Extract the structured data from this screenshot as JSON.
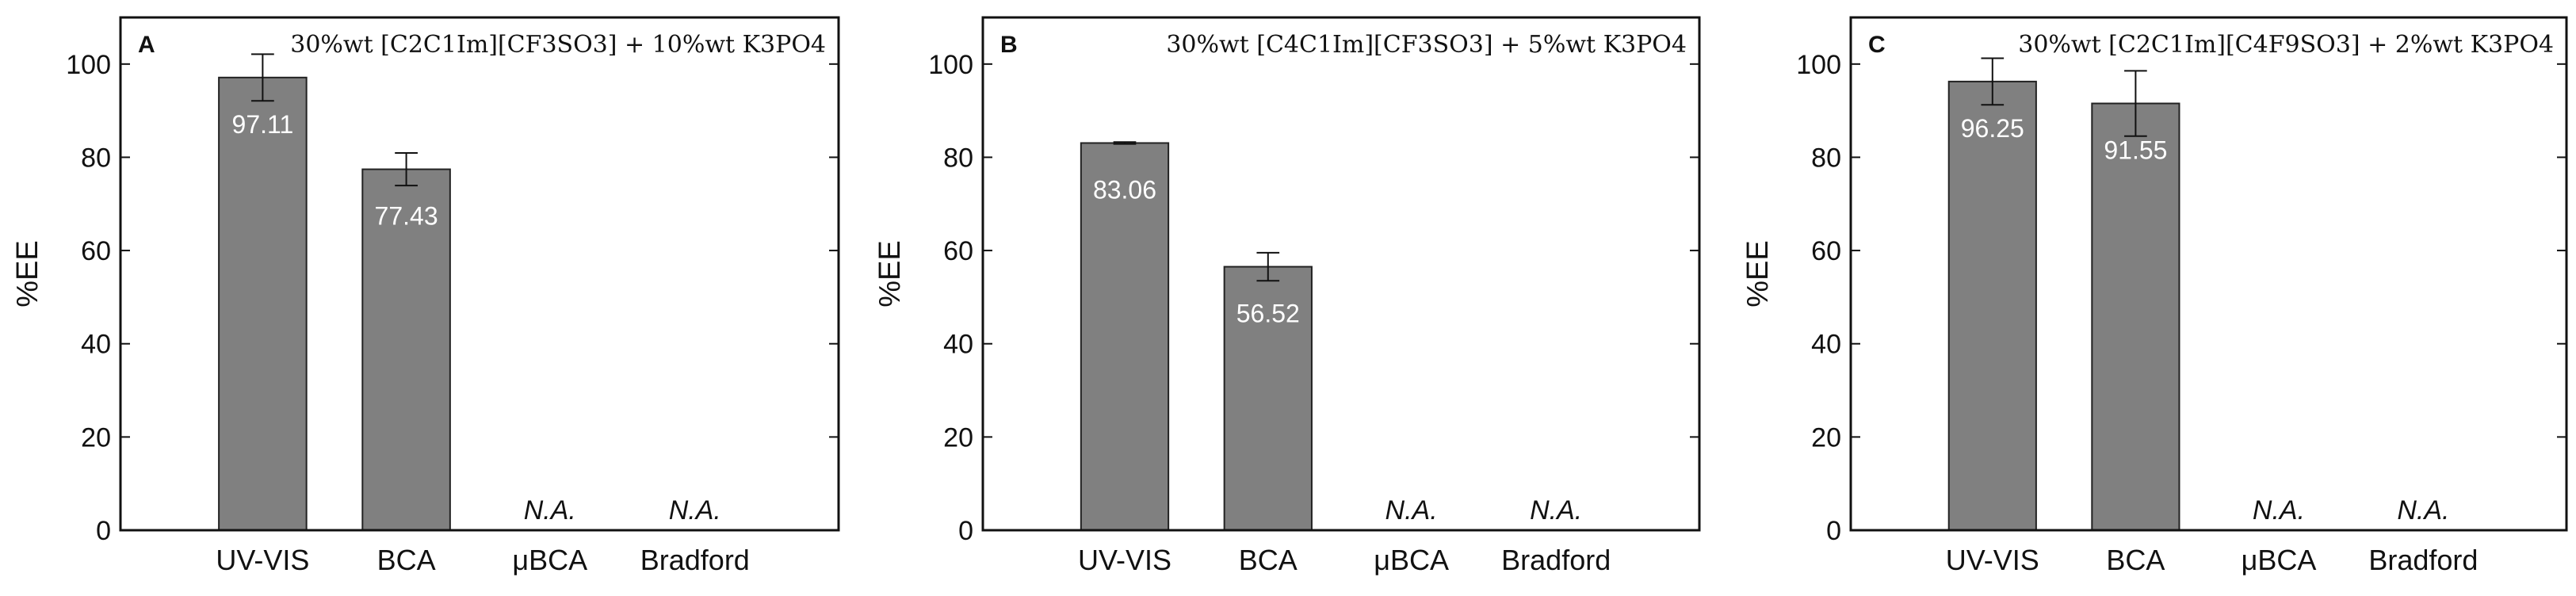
{
  "chart_data": [
    {
      "type": "bar",
      "panel": "A",
      "title": "30%wt [C2C1Im][CF3SO3] + 10%wt K3PO4",
      "ylabel": "%EE",
      "xlabel": "",
      "ylim": [
        0,
        110
      ],
      "yticks": [
        0,
        20,
        40,
        60,
        80,
        100
      ],
      "grid": false,
      "categories": [
        "UV-VIS",
        "BCA",
        "μBCA",
        "Bradford"
      ],
      "values": [
        97.11,
        77.43,
        null,
        null
      ],
      "errors": [
        5.0,
        3.5,
        null,
        null
      ],
      "value_labels": [
        "97.11",
        "77.43",
        "N.A.",
        "N.A."
      ],
      "bar_color": "#808080"
    },
    {
      "type": "bar",
      "panel": "B",
      "title": "30%wt [C4C1Im][CF3SO3] + 5%wt K3PO4",
      "ylabel": "%EE",
      "xlabel": "",
      "ylim": [
        0,
        110
      ],
      "yticks": [
        0,
        20,
        40,
        60,
        80,
        100
      ],
      "grid": false,
      "categories": [
        "UV-VIS",
        "BCA",
        "μBCA",
        "Bradford"
      ],
      "values": [
        83.06,
        56.52,
        null,
        null
      ],
      "errors": [
        0.2,
        3.0,
        null,
        null
      ],
      "value_labels": [
        "83.06",
        "56.52",
        "N.A.",
        "N.A."
      ],
      "bar_color": "#808080"
    },
    {
      "type": "bar",
      "panel": "C",
      "title": "30%wt [C2C1Im][C4F9SO3] + 2%wt K3PO4",
      "ylabel": "%EE",
      "xlabel": "",
      "ylim": [
        0,
        110
      ],
      "yticks": [
        0,
        20,
        40,
        60,
        80,
        100
      ],
      "grid": false,
      "categories": [
        "UV-VIS",
        "BCA",
        "μBCA",
        "Bradford"
      ],
      "values": [
        96.25,
        91.55,
        null,
        null
      ],
      "errors": [
        5.0,
        7.0,
        null,
        null
      ],
      "value_labels": [
        "96.25",
        "91.55",
        "N.A.",
        "N.A."
      ],
      "bar_color": "#808080"
    }
  ]
}
